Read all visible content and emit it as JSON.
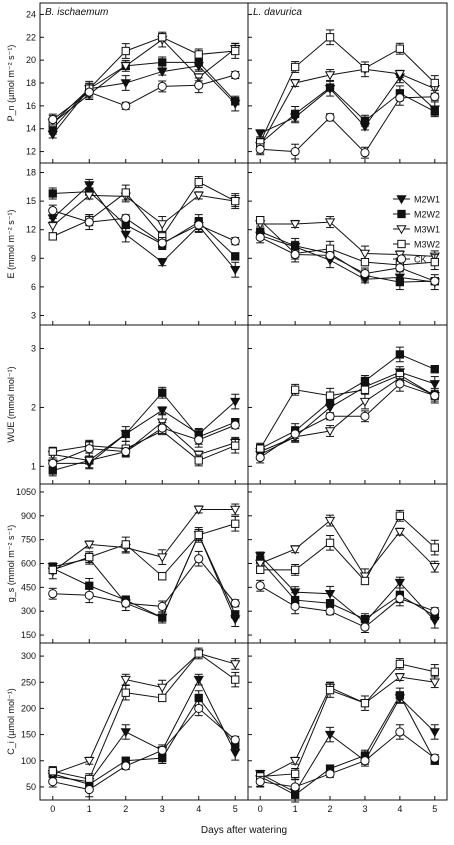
{
  "figure": {
    "xlabel": "Days after watering",
    "column_titles": [
      "B. ischaemum",
      "L. davurica"
    ],
    "legend": [
      "M2W1",
      "M2W2",
      "M3W1",
      "M3W2",
      "CK"
    ]
  },
  "chart_data": [
    {
      "type": "line",
      "panel": "Pn-B. ischaemum",
      "title": "B. ischaemum",
      "ylabel": "P_n (µmol m⁻² s⁻¹)",
      "ylim": [
        11,
        25
      ],
      "yticks": [
        12,
        14,
        16,
        18,
        20,
        22,
        24
      ],
      "x": [
        0,
        1,
        2,
        3,
        4,
        5
      ],
      "series": [
        {
          "name": "M2W1",
          "values": [
            13.5,
            17.5,
            18.0,
            19.0,
            19.5,
            16.2
          ]
        },
        {
          "name": "M2W2",
          "values": [
            14.0,
            17.5,
            19.5,
            19.8,
            19.8,
            16.4
          ]
        },
        {
          "name": "M3W1",
          "values": [
            14.5,
            17.0,
            19.5,
            21.8,
            18.5,
            21.0
          ]
        },
        {
          "name": "M3W2",
          "values": [
            14.5,
            17.5,
            20.8,
            22.0,
            20.5,
            20.8
          ]
        },
        {
          "name": "CK",
          "values": [
            14.8,
            17.2,
            16.0,
            17.7,
            17.8,
            18.7
          ]
        }
      ]
    },
    {
      "type": "line",
      "panel": "Pn-L. davurica",
      "title": "L. davurica",
      "ylabel": "",
      "ylim": [
        11,
        25
      ],
      "yticks": [
        12,
        14,
        16,
        18,
        20,
        22,
        24
      ],
      "x": [
        0,
        1,
        2,
        3,
        4,
        5
      ],
      "series": [
        {
          "name": "M2W1",
          "values": [
            13.6,
            15.0,
            17.5,
            14.2,
            18.5,
            15.7
          ]
        },
        {
          "name": "M2W2",
          "values": [
            12.7,
            15.3,
            17.6,
            14.7,
            17.1,
            15.5
          ]
        },
        {
          "name": "M3W1",
          "values": [
            12.5,
            18.0,
            18.7,
            19.2,
            18.8,
            17.5
          ]
        },
        {
          "name": "M3W2",
          "values": [
            12.8,
            19.4,
            22.0,
            19.3,
            21.0,
            18.0
          ]
        },
        {
          "name": "CK",
          "values": [
            12.2,
            12.0,
            15.0,
            11.9,
            16.7,
            16.8
          ]
        }
      ]
    },
    {
      "type": "line",
      "panel": "E-B. ischaemum",
      "title": "",
      "ylabel": "E (mmol m⁻² s⁻¹)",
      "ylim": [
        2,
        19
      ],
      "yticks": [
        3,
        6,
        9,
        12,
        15,
        18
      ],
      "x": [
        0,
        1,
        2,
        3,
        4,
        5
      ],
      "series": [
        {
          "name": "M2W1",
          "values": [
            13.2,
            16.7,
            11.5,
            8.6,
            12.4,
            7.8
          ]
        },
        {
          "name": "M2W2",
          "values": [
            15.8,
            16.0,
            12.5,
            10.5,
            12.8,
            9.2
          ]
        },
        {
          "name": "M3W1",
          "values": [
            12.4,
            15.6,
            15.5,
            12.6,
            15.6,
            15.0
          ]
        },
        {
          "name": "M3W2",
          "values": [
            11.3,
            13.0,
            15.9,
            11.3,
            17.0,
            15.0
          ]
        },
        {
          "name": "CK",
          "values": [
            14.0,
            12.8,
            13.2,
            10.6,
            12.5,
            10.8
          ]
        }
      ]
    },
    {
      "type": "line",
      "panel": "E-L. davurica",
      "title": "",
      "ylabel": "",
      "ylim": [
        2,
        19
      ],
      "yticks": [
        3,
        6,
        9,
        12,
        15,
        18
      ],
      "x": [
        0,
        1,
        2,
        3,
        4,
        5
      ],
      "series": [
        {
          "name": "M2W1",
          "values": [
            11.4,
            10.2,
            8.8,
            6.8,
            7.0,
            6.5
          ]
        },
        {
          "name": "M2W2",
          "values": [
            11.8,
            10.3,
            9.5,
            7.2,
            6.5,
            6.6
          ]
        },
        {
          "name": "M3W1",
          "values": [
            12.6,
            12.6,
            12.8,
            9.5,
            9.4,
            9.2
          ]
        },
        {
          "name": "M3W2",
          "values": [
            13.0,
            9.5,
            10.0,
            8.6,
            8.3,
            8.6
          ]
        },
        {
          "name": "CK",
          "values": [
            11.2,
            9.4,
            9.3,
            7.4,
            8.0,
            6.6
          ]
        }
      ]
    },
    {
      "type": "line",
      "panel": "WUE-B. ischaemum",
      "title": "",
      "ylabel": "WUE (mmol mol⁻¹)",
      "ylim": [
        0.7,
        3.4
      ],
      "yticks": [
        1,
        2,
        3
      ],
      "x": [
        0,
        1,
        2,
        3,
        4,
        5
      ],
      "series": [
        {
          "name": "M2W1",
          "values": [
            1.05,
            1.05,
            1.55,
            1.95,
            1.55,
            2.1
          ]
        },
        {
          "name": "M2W2",
          "values": [
            0.93,
            1.1,
            1.55,
            2.25,
            1.5,
            1.75
          ]
        },
        {
          "name": "M3W1",
          "values": [
            1.2,
            1.1,
            1.25,
            1.75,
            1.2,
            1.4
          ]
        },
        {
          "name": "M3W2",
          "values": [
            1.25,
            1.35,
            1.3,
            1.6,
            1.1,
            1.35
          ]
        },
        {
          "name": "CK",
          "values": [
            1.05,
            1.3,
            1.25,
            1.65,
            1.45,
            1.7
          ]
        }
      ]
    },
    {
      "type": "line",
      "panel": "WUE-L. davurica",
      "title": "",
      "ylabel": "",
      "ylim": [
        0.7,
        3.4
      ],
      "yticks": [
        1,
        2,
        3
      ],
      "x": [
        0,
        1,
        2,
        3,
        4,
        5
      ],
      "series": [
        {
          "name": "M2W1",
          "values": [
            1.2,
            1.5,
            2.0,
            2.35,
            2.6,
            2.4
          ]
        },
        {
          "name": "M2W2",
          "values": [
            1.3,
            1.6,
            2.1,
            2.45,
            2.9,
            2.65
          ]
        },
        {
          "name": "M3W1",
          "values": [
            1.25,
            1.5,
            1.6,
            2.1,
            2.5,
            2.2
          ]
        },
        {
          "name": "M3W2",
          "values": [
            1.3,
            2.3,
            2.2,
            2.3,
            2.55,
            2.2
          ]
        },
        {
          "name": "CK",
          "values": [
            1.15,
            1.55,
            1.85,
            1.85,
            2.4,
            2.2
          ]
        }
      ]
    },
    {
      "type": "line",
      "panel": "gs-B. ischaemum",
      "title": "",
      "ylabel": "g_s (mmol m⁻² s⁻¹)",
      "ylim": [
        100,
        1100
      ],
      "yticks": [
        150,
        300,
        450,
        600,
        750,
        900,
        1050
      ],
      "x": [
        0,
        1,
        2,
        3,
        4,
        5
      ],
      "series": [
        {
          "name": "M2W1",
          "values": [
            580,
            630,
            350,
            260,
            780,
            250
          ]
        },
        {
          "name": "M2W2",
          "values": [
            570,
            460,
            370,
            260,
            780,
            280
          ]
        },
        {
          "name": "M3W1",
          "values": [
            550,
            720,
            700,
            640,
            940,
            940
          ]
        },
        {
          "name": "M3W2",
          "values": [
            560,
            640,
            720,
            520,
            780,
            850
          ]
        },
        {
          "name": "CK",
          "values": [
            410,
            400,
            350,
            330,
            630,
            350
          ]
        }
      ]
    },
    {
      "type": "line",
      "panel": "gs-L. davurica",
      "title": "",
      "ylabel": "",
      "ylim": [
        100,
        1100
      ],
      "yticks": [
        150,
        300,
        450,
        600,
        750,
        900,
        1050
      ],
      "x": [
        0,
        1,
        2,
        3,
        4,
        5
      ],
      "series": [
        {
          "name": "M2W1",
          "values": [
            650,
            420,
            410,
            230,
            480,
            240
          ]
        },
        {
          "name": "M2W2",
          "values": [
            620,
            370,
            350,
            250,
            400,
            270
          ]
        },
        {
          "name": "M3W1",
          "values": [
            600,
            690,
            870,
            520,
            800,
            580
          ]
        },
        {
          "name": "M3W2",
          "values": [
            560,
            560,
            730,
            490,
            900,
            700
          ]
        },
        {
          "name": "CK",
          "values": [
            460,
            330,
            300,
            200,
            380,
            300
          ]
        }
      ]
    },
    {
      "type": "line",
      "panel": "Ci-B. ischaemum",
      "title": "",
      "ylabel": "C_i (µmol mol⁻¹)",
      "ylim": [
        25,
        325
      ],
      "yticks": [
        50,
        100,
        150,
        200,
        250,
        300
      ],
      "x": [
        0,
        1,
        2,
        3,
        4,
        5
      ],
      "series": [
        {
          "name": "M2W1",
          "values": [
            70,
            60,
            155,
            120,
            255,
            115
          ]
        },
        {
          "name": "M2W2",
          "values": [
            75,
            55,
            100,
            105,
            220,
            130
          ]
        },
        {
          "name": "M3W1",
          "values": [
            75,
            100,
            255,
            240,
            305,
            285
          ]
        },
        {
          "name": "M3W2",
          "values": [
            80,
            65,
            230,
            220,
            305,
            255
          ]
        },
        {
          "name": "CK",
          "values": [
            60,
            45,
            90,
            120,
            200,
            140
          ]
        }
      ]
    },
    {
      "type": "line",
      "panel": "Ci-L. davurica",
      "title": "",
      "ylabel": "",
      "ylim": [
        25,
        325
      ],
      "yticks": [
        50,
        100,
        150,
        200,
        250,
        300
      ],
      "x": [
        0,
        1,
        2,
        3,
        4,
        5
      ],
      "series": [
        {
          "name": "M2W1",
          "values": [
            75,
            40,
            150,
            100,
            220,
            155
          ]
        },
        {
          "name": "M2W2",
          "values": [
            70,
            35,
            85,
            110,
            225,
            100
          ]
        },
        {
          "name": "M3W1",
          "values": [
            65,
            100,
            240,
            210,
            260,
            250
          ]
        },
        {
          "name": "M3W2",
          "values": [
            70,
            75,
            235,
            210,
            285,
            270
          ]
        },
        {
          "name": "CK",
          "values": [
            60,
            50,
            75,
            100,
            155,
            105
          ]
        }
      ]
    }
  ]
}
